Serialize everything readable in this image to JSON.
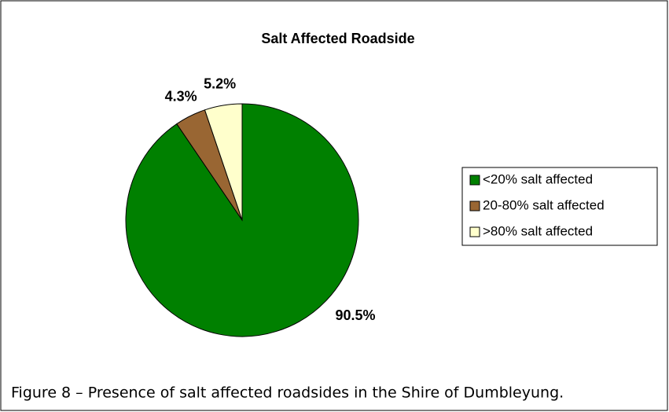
{
  "chart_data": {
    "type": "pie",
    "title": "Salt Affected Roadside",
    "categories": [
      "<20% salt affected",
      "20-80% salt affected",
      ">80% salt affected"
    ],
    "values": [
      90.5,
      4.3,
      5.2
    ],
    "value_labels": [
      "90.5%",
      "4.3%",
      "5.2%"
    ],
    "colors": [
      "#008000",
      "#996633",
      "#ffffcc"
    ],
    "legend": "right",
    "caption": "Figure 8 – Presence of salt affected roadsides in the Shire of Dumbleyung."
  }
}
